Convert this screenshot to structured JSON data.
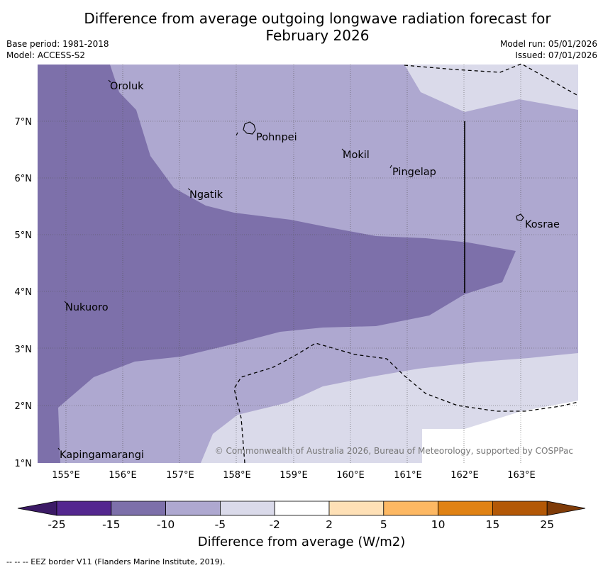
{
  "header": {
    "title_line1": "Difference from average outgoing longwave radiation forecast for",
    "title_line2": "February 2026",
    "base_period": "Base period: 1981-2018",
    "model": "Model: ACCESS-S2",
    "model_run": "Model run: 05/01/2026",
    "issued": "Issued: 07/01/2026"
  },
  "map": {
    "lat_ticks": [
      "7°N",
      "6°N",
      "5°N",
      "4°N",
      "3°N",
      "2°N",
      "1°N"
    ],
    "lon_ticks": [
      "155°E",
      "156°E",
      "157°E",
      "158°E",
      "159°E",
      "160°E",
      "161°E",
      "162°E",
      "163°E"
    ],
    "places": [
      {
        "name": "Oroluk"
      },
      {
        "name": "Pohnpei"
      },
      {
        "name": "Mokil"
      },
      {
        "name": "Pingelap"
      },
      {
        "name": "Ngatik"
      },
      {
        "name": "Kosrae"
      },
      {
        "name": "Nukuoro"
      },
      {
        "name": "Kapingamarangi"
      }
    ],
    "copyright": "© Commonwealth of Australia 2026, Bureau of Meteorology, supported by COSPPac"
  },
  "colorbar": {
    "tick_labels": [
      "-25",
      "-15",
      "-10",
      "-5",
      "-2",
      "2",
      "5",
      "10",
      "15",
      "25"
    ],
    "colors": [
      "#3c1a66",
      "#54278f",
      "#7d70aa",
      "#aea8d0",
      "#dadaea",
      "#ffffff",
      "#fee0b6",
      "#fdb863",
      "#e08214",
      "#b35806",
      "#7f3b08"
    ],
    "label": "Difference from average (W/m2)"
  },
  "footnote": "--  --  -- EEZ border V11 (Flanders Marine Institute, 2019)."
}
